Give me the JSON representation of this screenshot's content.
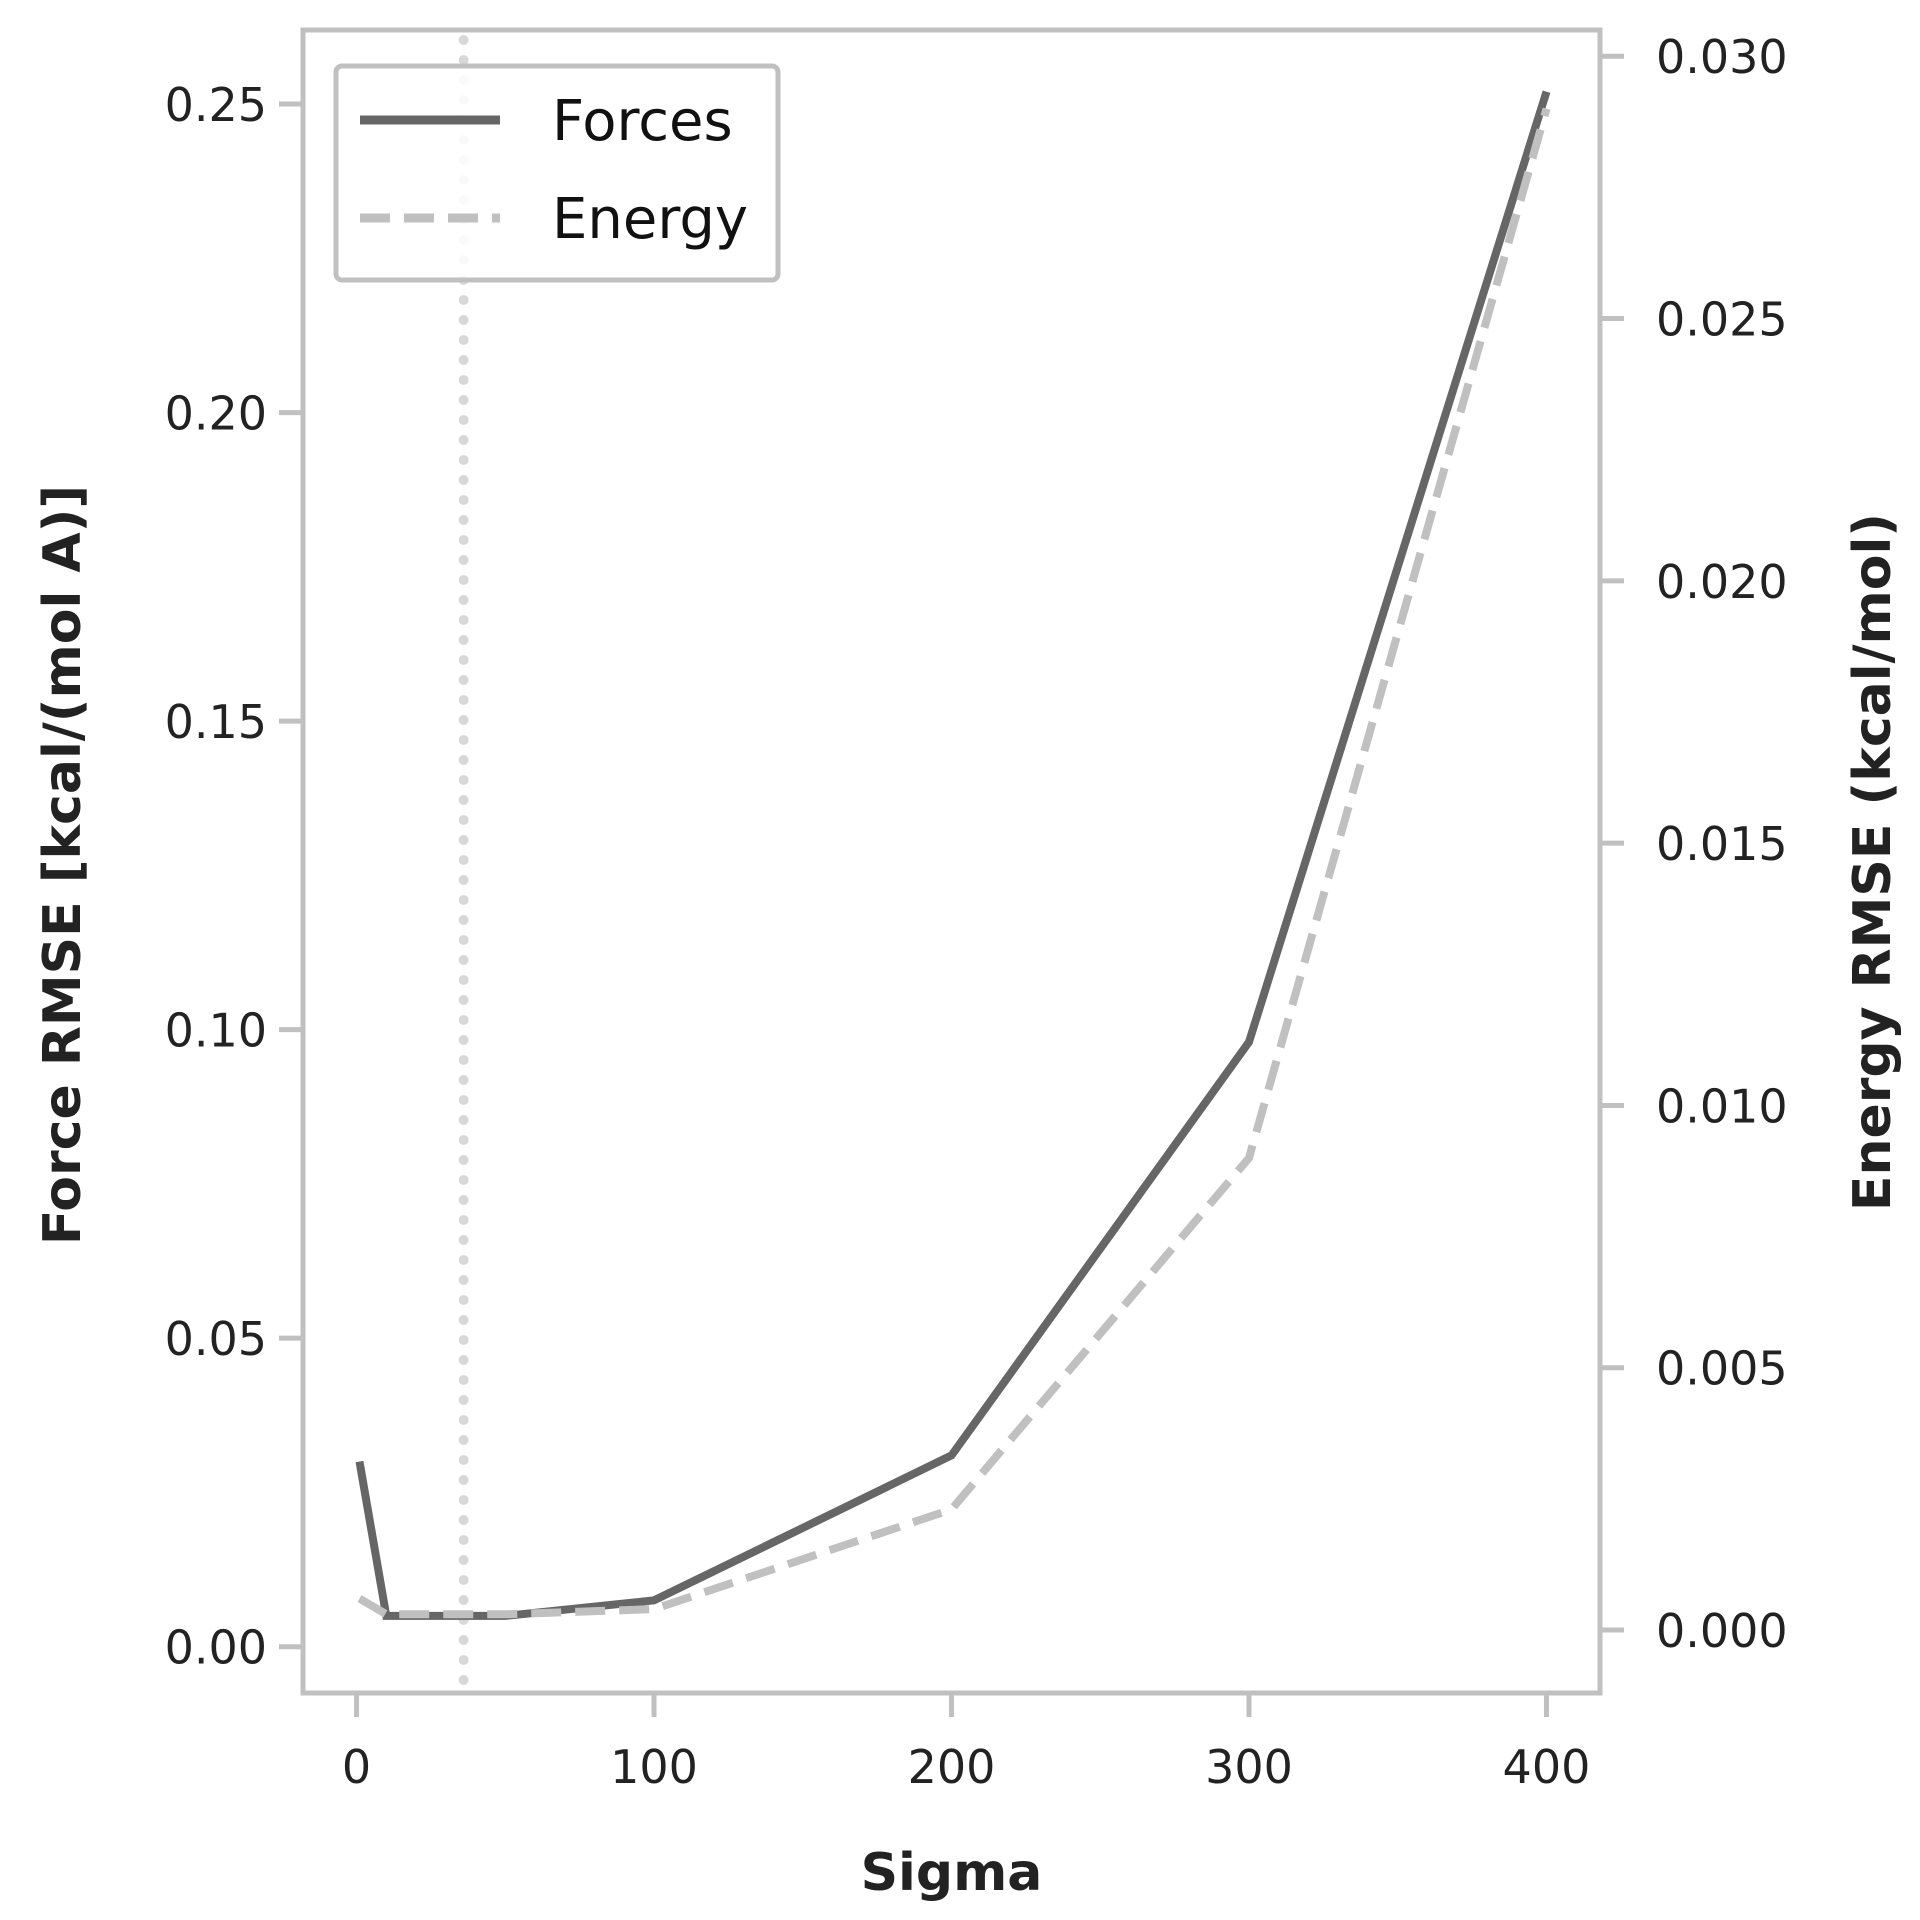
{
  "chart_data": {
    "type": "line",
    "xlabel": "Sigma",
    "ylabel_left": "Force RMSE [kcal/(mol A)]",
    "ylabel_right": "Energy RMSE (kcal/mol)",
    "x_ticks": [
      0,
      100,
      200,
      300,
      400
    ],
    "y_left_ticks": [
      "0.00",
      "0.05",
      "0.10",
      "0.15",
      "0.20",
      "0.25"
    ],
    "y_right_ticks": [
      "0.000",
      "0.005",
      "0.010",
      "0.015",
      "0.020",
      "0.025",
      "0.030"
    ],
    "xlim": [
      -18,
      418
    ],
    "ylim_left": [
      -0.0075,
      0.262
    ],
    "ylim_right": [
      -0.0012,
      0.0305
    ],
    "grid": false,
    "legend_position": "top-left",
    "vertical_reference_line": {
      "x": 36,
      "style": "dotted"
    },
    "series": [
      {
        "name": "Forces",
        "axis": "left",
        "style": "solid",
        "color": "#666666",
        "x": [
          1,
          10,
          25,
          50,
          100,
          200,
          300,
          400
        ],
        "y": [
          0.03,
          0.005,
          0.005,
          0.005,
          0.0075,
          0.031,
          0.098,
          0.252
        ]
      },
      {
        "name": "Energy",
        "axis": "right",
        "style": "dashed",
        "color": "#c0c0c0",
        "x": [
          1,
          10,
          25,
          50,
          100,
          200,
          300,
          400
        ],
        "y": [
          0.0006,
          0.0003,
          0.0003,
          0.0003,
          0.0004,
          0.0023,
          0.009,
          0.029
        ]
      }
    ]
  },
  "colors": {
    "frame": "#c0c0c0",
    "forces": "#666666",
    "energy": "#c0c0c0",
    "reference_line": "#d8d8d8",
    "text": "#222222"
  }
}
